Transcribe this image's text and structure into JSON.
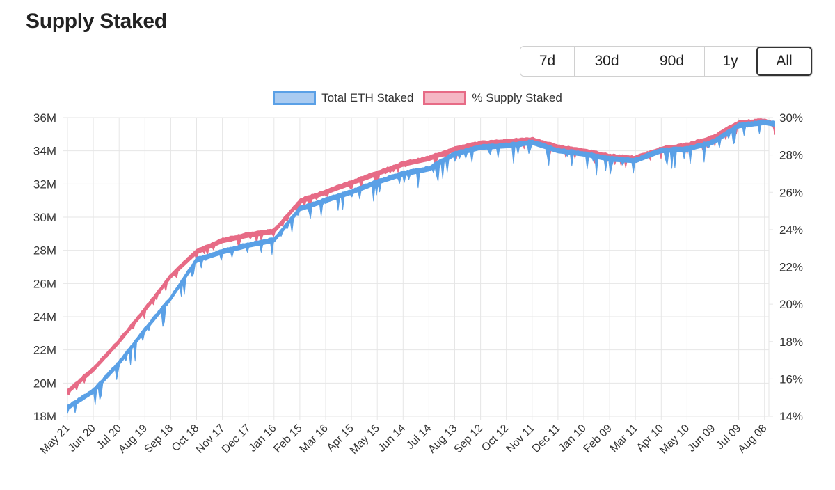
{
  "page": {
    "title": "Supply Staked"
  },
  "range_selector": {
    "options": [
      {
        "label": "7d",
        "active": false
      },
      {
        "label": "30d",
        "active": false
      },
      {
        "label": "90d",
        "active": false
      },
      {
        "label": "1y",
        "active": false
      },
      {
        "label": "All",
        "active": true
      }
    ]
  },
  "colors": {
    "eth_fill": "#5aa0e6",
    "eth_legend_fill": "#a9cbf1",
    "pct_fill": "#e76b86",
    "pct_legend_fill": "#f5b7c4",
    "grid": "#e6e6e6",
    "tick_text": "#333333"
  },
  "chart_data": {
    "type": "area",
    "legend_position": "top-center",
    "grid": true,
    "x_tick_labels": [
      "May 21",
      "Jun 20",
      "Jul 20",
      "Aug 19",
      "Sep 18",
      "Oct 18",
      "Nov 17",
      "Dec 17",
      "Jan 16",
      "Feb 15",
      "Mar 16",
      "Apr 15",
      "May 15",
      "Jun 14",
      "Jul 14",
      "Aug 13",
      "Sep 12",
      "Oct 12",
      "Nov 11",
      "Dec 11",
      "Jan 10",
      "Feb 09",
      "Mar 11",
      "Apr 10",
      "May 10",
      "Jun 09",
      "Jul 09",
      "Aug 08"
    ],
    "y_left": {
      "ticks": [
        "18M",
        "20M",
        "22M",
        "24M",
        "26M",
        "28M",
        "30M",
        "32M",
        "34M",
        "36M"
      ],
      "min": 18,
      "max": 36
    },
    "y_right": {
      "ticks": [
        "14%",
        "16%",
        "18%",
        "20%",
        "22%",
        "24%",
        "26%",
        "28%",
        "30%"
      ],
      "min": 14,
      "max": 30
    },
    "series": [
      {
        "name": "Total ETH Staked",
        "axis": "left",
        "x": [
          0,
          1,
          2,
          3,
          4,
          5,
          6,
          7,
          8,
          9,
          10,
          11,
          12,
          13,
          14,
          15,
          16,
          17,
          18,
          19,
          20,
          21,
          22,
          23,
          24,
          25,
          26,
          27,
          27.4
        ],
        "values": [
          18.5,
          19.5,
          21.2,
          23.2,
          25.1,
          27.4,
          27.9,
          28.3,
          28.6,
          30.5,
          31.0,
          31.5,
          32.1,
          32.6,
          32.9,
          33.8,
          34.2,
          34.3,
          34.5,
          34.0,
          33.8,
          33.5,
          33.4,
          34.0,
          34.1,
          34.5,
          35.5,
          35.7,
          35.6
        ]
      },
      {
        "name": "% Supply Staked",
        "axis": "right",
        "x": [
          0,
          1,
          2,
          3,
          4,
          5,
          6,
          7,
          8,
          9,
          10,
          11,
          12,
          13,
          14,
          15,
          16,
          17,
          18,
          19,
          20,
          21,
          22,
          23,
          24,
          25,
          26,
          27,
          27.4
        ],
        "values": [
          15.3,
          16.5,
          18.0,
          19.7,
          21.5,
          22.8,
          23.4,
          23.7,
          23.9,
          25.5,
          26.0,
          26.5,
          27.0,
          27.5,
          27.8,
          28.3,
          28.6,
          28.7,
          28.8,
          28.4,
          28.2,
          27.9,
          27.8,
          28.3,
          28.5,
          28.9,
          29.7,
          29.8,
          29.6
        ]
      }
    ]
  }
}
